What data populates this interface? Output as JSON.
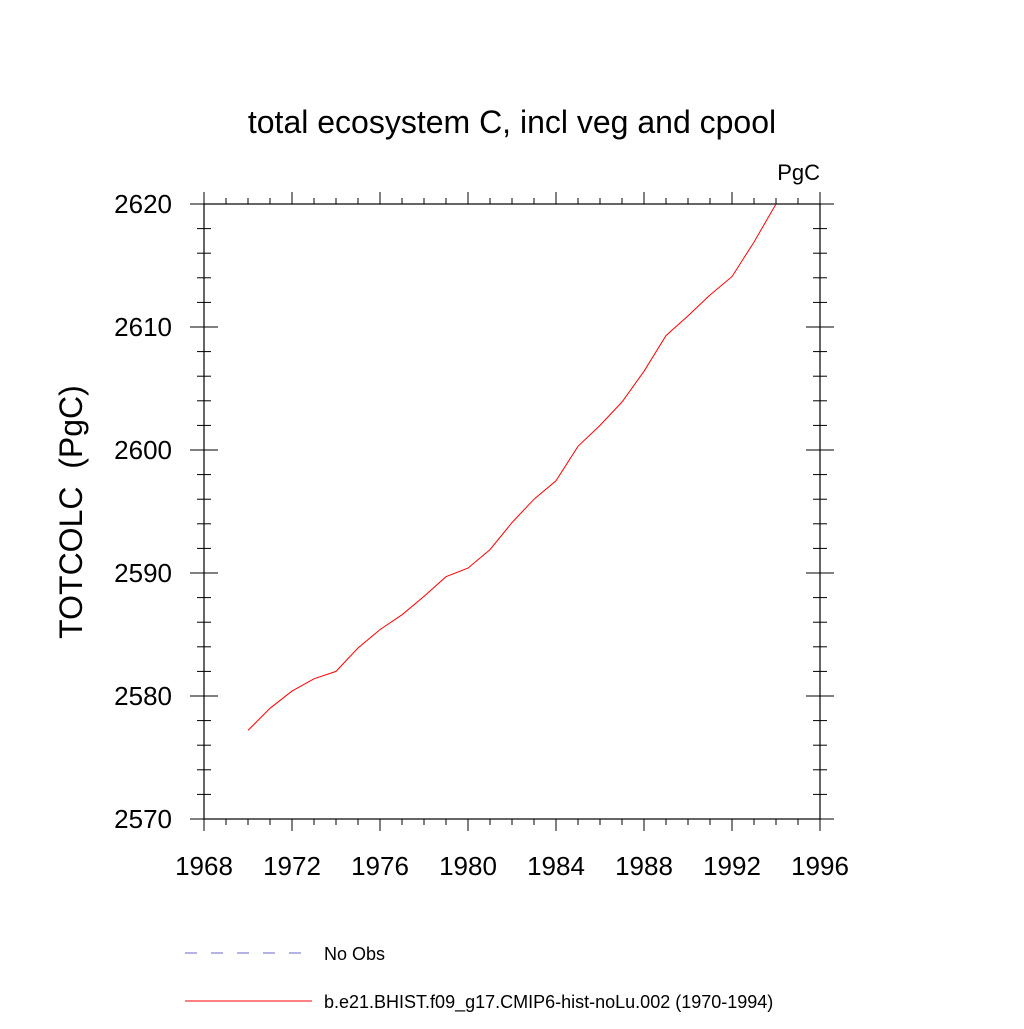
{
  "chart_data": {
    "type": "line",
    "title": "total ecosystem C, incl veg and cpool",
    "units": "PgC",
    "xlabel": "",
    "ylabel": "TOTCOLC  (PgC)",
    "xlim": [
      1968,
      1996
    ],
    "ylim": [
      2570,
      2620
    ],
    "x_ticks": [
      "1968",
      "1972",
      "1976",
      "1980",
      "1984",
      "1988",
      "1992",
      "1996"
    ],
    "y_ticks": [
      "2570",
      "2580",
      "2590",
      "2600",
      "2610",
      "2620"
    ],
    "grid": false,
    "series": [
      {
        "name": "b.e21.BHIST.f09_g17.CMIP6-hist-noLu.002 (1970-1994)",
        "color": "#ff0000",
        "style": "solid",
        "x": [
          1970,
          1971,
          1972,
          1973,
          1974,
          1975,
          1976,
          1977,
          1978,
          1979,
          1980,
          1981,
          1982,
          1983,
          1984,
          1985,
          1986,
          1987,
          1988,
          1989,
          1990,
          1991,
          1992,
          1993,
          1994
        ],
        "values": [
          2577.2,
          2579.0,
          2580.4,
          2581.4,
          2582.0,
          2583.9,
          2585.4,
          2586.6,
          2588.1,
          2589.7,
          2590.4,
          2591.9,
          2594.1,
          2596.0,
          2597.5,
          2600.3,
          2602.0,
          2603.9,
          2606.4,
          2609.3,
          2610.9,
          2612.6,
          2614.1,
          2616.9,
          2620.0
        ]
      }
    ],
    "legend": {
      "placement": "bottom",
      "entries": [
        {
          "label": "No Obs",
          "color": "#6a6ac8",
          "style": "dashed"
        },
        {
          "label": "b.e21.BHIST.f09_g17.CMIP6-hist-noLu.002 (1970-1994)",
          "color": "#ff0000",
          "style": "solid"
        }
      ]
    }
  }
}
